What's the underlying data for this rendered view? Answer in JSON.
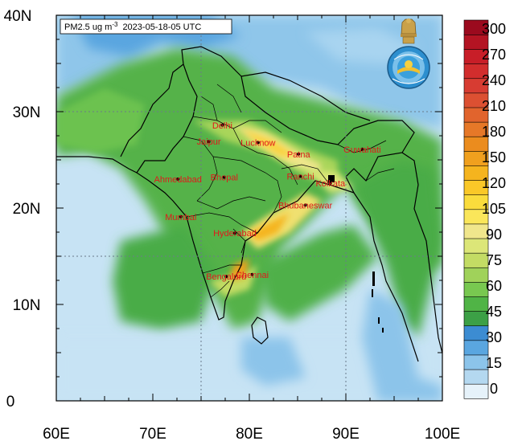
{
  "title": {
    "quantity": "PM2.5 ug m",
    "exponent": "-3",
    "timestamp": "2023-05-18-05 UTC"
  },
  "axes": {
    "lon_range": [
      60,
      100
    ],
    "lat_range": [
      0,
      40
    ],
    "x_tick_labels": [
      "60E",
      "70E",
      "80E",
      "90E",
      "100E"
    ],
    "y_tick_labels": [
      "0",
      "10N",
      "20N",
      "30N",
      "40N"
    ],
    "x_tick_values": [
      60,
      70,
      80,
      90,
      100
    ],
    "y_tick_values": [
      0,
      10,
      20,
      30,
      40
    ],
    "grid": "dashed at 75E, 90E, 15N, 30N"
  },
  "colorbar": {
    "placement": "right",
    "labels": [
      "300",
      "270",
      "240",
      "210",
      "180",
      "150",
      "120",
      "105",
      "90",
      "75",
      "60",
      "45",
      "30",
      "15",
      "0"
    ],
    "levels": [
      0,
      15,
      30,
      45,
      60,
      75,
      90,
      105,
      120,
      150,
      180,
      210,
      240,
      270,
      300
    ],
    "colors": [
      "#e6f2fa",
      "#b4d8f0",
      "#8cc4ea",
      "#5aa6e0",
      "#3c8cd2",
      "#3ca046",
      "#50b446",
      "#78c850",
      "#a0d25a",
      "#c3dc64",
      "#dce678",
      "#f0e68c",
      "#fae65a",
      "#fadc3c",
      "#fac828",
      "#f5b41e",
      "#f0a01e",
      "#eb8c1e",
      "#e67828",
      "#e1642d",
      "#dc5032",
      "#d73c32",
      "#d22d2d",
      "#c81e28",
      "#b41423",
      "#9b0a1e"
    ]
  },
  "cities": [
    {
      "name": "Delhi",
      "lon": 77.2,
      "lat": 28.6
    },
    {
      "name": "Jaipur",
      "lon": 75.8,
      "lat": 26.9
    },
    {
      "name": "Lucknow",
      "lon": 80.9,
      "lat": 26.8
    },
    {
      "name": "Patna",
      "lon": 85.1,
      "lat": 25.6
    },
    {
      "name": "Guwahati",
      "lon": 91.7,
      "lat": 26.1
    },
    {
      "name": "Ahmedabad",
      "lon": 72.6,
      "lat": 23.0
    },
    {
      "name": "Bhopal",
      "lon": 77.4,
      "lat": 23.2
    },
    {
      "name": "Ranchi",
      "lon": 85.3,
      "lat": 23.3
    },
    {
      "name": "Kolkata",
      "lon": 88.4,
      "lat": 22.6
    },
    {
      "name": "Bhubaneswar",
      "lon": 85.8,
      "lat": 20.3
    },
    {
      "name": "Mumbai",
      "lon": 72.9,
      "lat": 19.1
    },
    {
      "name": "Hyderabad",
      "lon": 78.5,
      "lat": 17.4
    },
    {
      "name": "Chennai",
      "lon": 80.3,
      "lat": 13.1
    },
    {
      "name": "Bengaluru",
      "lon": 77.6,
      "lat": 12.9
    }
  ],
  "logo": {
    "name": "imd-emblem-icon"
  }
}
